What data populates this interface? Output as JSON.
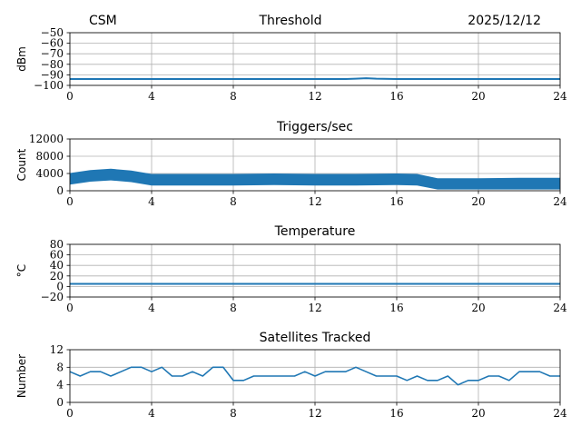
{
  "header": {
    "left": "CSM",
    "center": "Threshold",
    "right": "2025/12/12"
  },
  "chart_data": [
    {
      "type": "line",
      "title": "Threshold",
      "ylabel": "dBm",
      "xlim": [
        0,
        24
      ],
      "ylim": [
        -100,
        -50
      ],
      "xticks": [
        "0",
        "4",
        "8",
        "12",
        "16",
        "20",
        "24"
      ],
      "yticks": [
        "−50",
        "−60",
        "−70",
        "−80",
        "−90",
        "−100"
      ],
      "yticks_values": [
        -50,
        -60,
        -70,
        -80,
        -90,
        -100
      ],
      "grid": true,
      "color": "#1f77b4",
      "series": [
        {
          "x": [
            0,
            2,
            4,
            6,
            8,
            10,
            12,
            13.5,
            14,
            14.5,
            15,
            16,
            18,
            20,
            22,
            24
          ],
          "values": [
            -94,
            -94,
            -94,
            -94,
            -94,
            -94,
            -94,
            -94,
            -93.6,
            -93.2,
            -93.6,
            -94,
            -94,
            -94,
            -94,
            -94
          ]
        }
      ]
    },
    {
      "type": "line",
      "title": "Triggers/sec",
      "ylabel": "Count",
      "xlim": [
        0,
        24
      ],
      "ylim": [
        0,
        12000
      ],
      "xticks": [
        "0",
        "4",
        "8",
        "12",
        "16",
        "20",
        "24"
      ],
      "yticks": [
        "12000",
        "8000",
        "4000",
        "0"
      ],
      "yticks_values": [
        12000,
        8000,
        4000,
        0
      ],
      "grid": true,
      "color": "#1f77b4",
      "series": [
        {
          "x": [
            0,
            1,
            2,
            3,
            4,
            6,
            8,
            10,
            12,
            14,
            16,
            17,
            18,
            20,
            22,
            24
          ],
          "values": [
            3200,
            3900,
            4200,
            3800,
            3000,
            3000,
            3000,
            3100,
            3000,
            3000,
            3100,
            3000,
            2000,
            2000,
            2100,
            2100
          ]
        }
      ]
    },
    {
      "type": "line",
      "title": "Temperature",
      "ylabel": "°C",
      "xlim": [
        0,
        24
      ],
      "ylim": [
        -20,
        80
      ],
      "xticks": [
        "0",
        "4",
        "8",
        "12",
        "16",
        "20",
        "24"
      ],
      "yticks": [
        "80",
        "60",
        "40",
        "20",
        "0",
        "−20"
      ],
      "yticks_values": [
        80,
        60,
        40,
        20,
        0,
        -20
      ],
      "grid": true,
      "color": "#1f77b4",
      "series": [
        {
          "x": [
            0,
            24
          ],
          "values": [
            5,
            5
          ]
        }
      ]
    },
    {
      "type": "line",
      "title": "Satellites Tracked",
      "ylabel": "Number",
      "xlim": [
        0,
        24
      ],
      "ylim": [
        0,
        12
      ],
      "xticks": [
        "0",
        "4",
        "8",
        "12",
        "16",
        "20",
        "24"
      ],
      "yticks": [
        "12",
        "8",
        "4",
        "0"
      ],
      "yticks_values": [
        12,
        8,
        4,
        0
      ],
      "grid": true,
      "color": "#1f77b4",
      "series": [
        {
          "x": [
            0,
            0.5,
            1,
            1.5,
            2,
            2.5,
            3,
            3.5,
            4,
            4.5,
            5,
            5.5,
            6,
            6.5,
            7,
            7.5,
            8,
            8.5,
            9,
            9.5,
            10,
            10.5,
            11,
            11.5,
            12,
            12.5,
            13,
            13.5,
            14,
            14.5,
            15,
            15.5,
            16,
            16.5,
            17,
            17.5,
            18,
            18.5,
            19,
            19.5,
            20,
            20.5,
            21,
            21.5,
            22,
            22.5,
            23,
            23.5,
            24
          ],
          "values": [
            7,
            6,
            7,
            7,
            6,
            7,
            8,
            8,
            7,
            8,
            6,
            6,
            7,
            6,
            8,
            8,
            5,
            5,
            6,
            6,
            6,
            6,
            6,
            7,
            6,
            7,
            7,
            7,
            8,
            7,
            6,
            6,
            6,
            5,
            6,
            5,
            5,
            6,
            4,
            5,
            5,
            6,
            6,
            5,
            7,
            7,
            7,
            6,
            6
          ]
        }
      ]
    }
  ]
}
